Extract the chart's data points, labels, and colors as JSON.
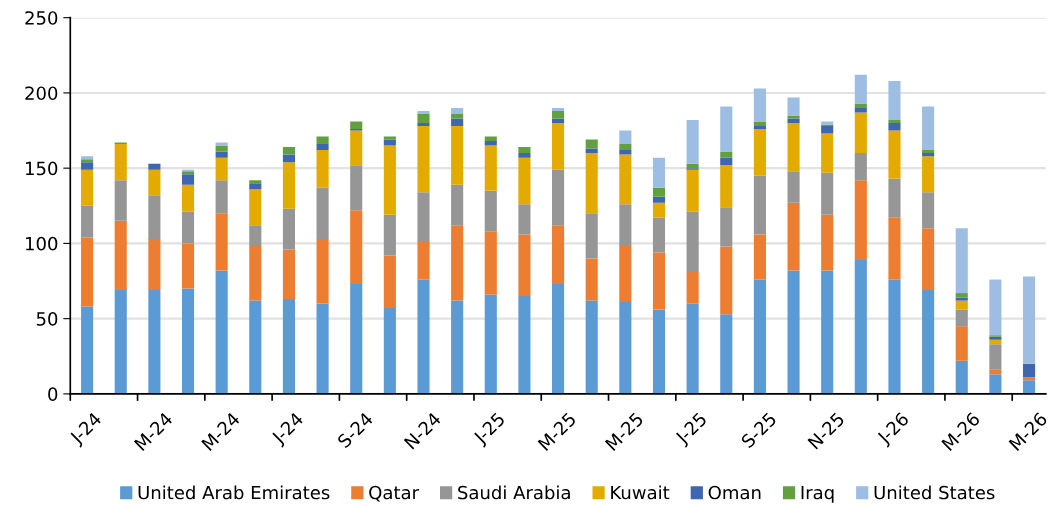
{
  "chart_data": {
    "type": "bar",
    "stacked": true,
    "categories": [
      "J-24",
      null,
      "M-24",
      null,
      "M-24",
      null,
      "J-24",
      null,
      "S-24",
      null,
      "N-24",
      null,
      "J-25",
      null,
      "M-25",
      null,
      "M-25",
      null,
      "J-25",
      null,
      "S-25",
      null,
      "N-25",
      null,
      "J-26",
      null,
      "M-26",
      null,
      "M-26"
    ],
    "series": [
      {
        "name": "United Arab Emirates",
        "color": "#5b9bd5",
        "values": [
          58,
          69,
          69,
          70,
          82,
          62,
          63,
          60,
          73,
          57,
          76,
          62,
          66,
          65,
          73,
          62,
          61,
          56,
          60,
          53,
          76,
          82,
          82,
          89,
          76,
          69,
          22,
          13,
          9
        ]
      },
      {
        "name": "Qatar",
        "color": "#ed7d31",
        "values": [
          46,
          46,
          34,
          30,
          38,
          37,
          33,
          43,
          49,
          35,
          25,
          50,
          42,
          41,
          39,
          28,
          38,
          38,
          21,
          45,
          30,
          45,
          37,
          53,
          41,
          41,
          23,
          3,
          2
        ]
      },
      {
        "name": "Saudi Arabia",
        "color": "#969696",
        "values": [
          21,
          27,
          29,
          21,
          22,
          13,
          27,
          34,
          30,
          27,
          33,
          27,
          27,
          20,
          37,
          30,
          27,
          23,
          40,
          26,
          39,
          21,
          28,
          18,
          26,
          24,
          11,
          17,
          0
        ]
      },
      {
        "name": "Kuwait",
        "color": "#e3ab00",
        "values": [
          24,
          24,
          17,
          18,
          15,
          24,
          31,
          25,
          23,
          46,
          44,
          39,
          30,
          31,
          31,
          40,
          33,
          10,
          28,
          28,
          31,
          32,
          26,
          27,
          32,
          24,
          6,
          3,
          0
        ]
      },
      {
        "name": "Oman",
        "color": "#3f66b0",
        "values": [
          5,
          0,
          4,
          7,
          4,
          4,
          5,
          4,
          1,
          4,
          2,
          5,
          3,
          3,
          3,
          3,
          3,
          4,
          1,
          5,
          2,
          3,
          5,
          3,
          5,
          2,
          2,
          2,
          9
        ]
      },
      {
        "name": "Iraq",
        "color": "#62a03f",
        "values": [
          2,
          1,
          0,
          2,
          4,
          2,
          5,
          5,
          5,
          2,
          6,
          3,
          3,
          4,
          5,
          6,
          4,
          6,
          3,
          4,
          3,
          2,
          1,
          3,
          2,
          2,
          3,
          1,
          0
        ]
      },
      {
        "name": "United States",
        "color": "#9dbde3",
        "values": [
          2,
          0,
          0,
          1,
          2,
          0,
          0,
          0,
          0,
          0,
          2,
          4,
          0,
          0,
          2,
          0,
          9,
          20,
          29,
          30,
          22,
          12,
          2,
          19,
          26,
          29,
          43,
          37,
          58
        ]
      }
    ],
    "ylim": [
      0,
      250
    ],
    "yticks": [
      0,
      50,
      100,
      150,
      200,
      250
    ],
    "grid": "y",
    "legend": "bottom"
  }
}
